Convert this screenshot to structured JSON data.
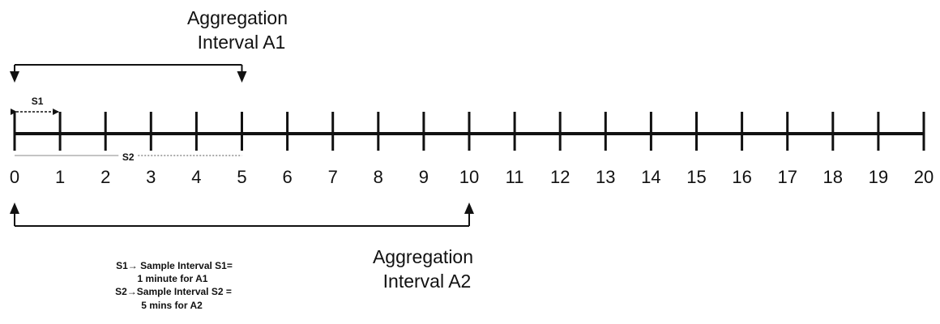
{
  "timeline": {
    "ticks": [
      "0",
      "1",
      "2",
      "3",
      "4",
      "5",
      "6",
      "7",
      "8",
      "9",
      "10",
      "11",
      "12",
      "13",
      "14",
      "15",
      "16",
      "17",
      "18",
      "19",
      "20"
    ]
  },
  "aggregation_a1": {
    "line1": "Aggregation",
    "line2": "Interval A1",
    "from": 0,
    "to": 5
  },
  "aggregation_a2": {
    "line1": "Aggregation",
    "line2": "Interval A2",
    "from": 0,
    "to": 10
  },
  "sample_s1": {
    "label": "S1",
    "from": 0,
    "to": 1
  },
  "sample_s2": {
    "label": "S2",
    "from": 0,
    "to": 5
  },
  "legend": {
    "line1": "S1→ Sample Interval S1=",
    "line2": "1 minute for A1",
    "line3": "S2→Sample Interval S2 =",
    "line4": "5 mins for A2"
  },
  "colors": {
    "ink": "#111111",
    "faint": "#888888"
  }
}
